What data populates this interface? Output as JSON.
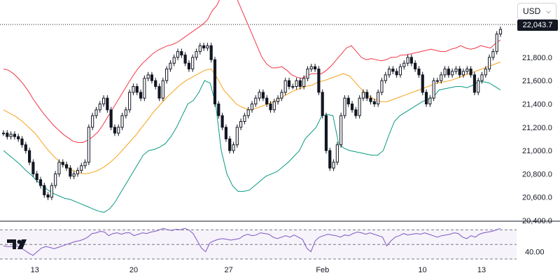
{
  "currency": {
    "label": "USD",
    "chevron_icon": "chevron-down-icon"
  },
  "last_price_label": "22,043.7",
  "price_axis": {
    "labels": [
      "21,800.0",
      "21,600.0",
      "21,400.0",
      "21,200.0",
      "21,000.0",
      "20,800.0",
      "20,600.0",
      "20,400.0"
    ]
  },
  "rsi_axis": {
    "labels": [
      "40.00"
    ]
  },
  "date_axis": {
    "labels": [
      "13",
      "20",
      "27",
      "Feb",
      "10",
      "13"
    ]
  },
  "brand": {
    "logo_icon": "tradingview-logo-icon"
  },
  "colors": {
    "upper_band": "#f23645",
    "middle_band": "#f7a21b",
    "lower_band": "#089981",
    "candles": "#131722",
    "rsi_line": "#7e57c2",
    "rsi_band_fill": "#ede7f6"
  },
  "chart_data": [
    {
      "type": "candlestick",
      "title": "",
      "ylim": [
        20400,
        22100
      ],
      "y_ticks": [
        20400,
        20600,
        20800,
        21000,
        21200,
        21400,
        21600,
        21800,
        22000
      ],
      "x_labels": [
        "13",
        "20",
        "27",
        "Feb",
        "10",
        "13"
      ],
      "close": [
        21150,
        21120,
        21140,
        21120,
        21100,
        21050,
        21000,
        20900,
        20800,
        20750,
        20700,
        20620,
        20600,
        20700,
        20800,
        20900,
        20880,
        20850,
        20780,
        20800,
        20830,
        20870,
        20900,
        21200,
        21300,
        21350,
        21400,
        21450,
        21350,
        21200,
        21150,
        21200,
        21300,
        21350,
        21500,
        21550,
        21500,
        21450,
        21620,
        21650,
        21600,
        21550,
        21450,
        21600,
        21700,
        21750,
        21800,
        21850,
        21820,
        21750,
        21700,
        21800,
        21850,
        21900,
        21880,
        21900,
        21780,
        21400,
        21300,
        21200,
        21100,
        21000,
        21050,
        21200,
        21250,
        21300,
        21350,
        21400,
        21450,
        21500,
        21450,
        21400,
        21350,
        21420,
        21450,
        21500,
        21600,
        21550,
        21550,
        21600,
        21550,
        21620,
        21700,
        21720,
        21700,
        21500,
        21300,
        21000,
        20850,
        20900,
        21050,
        21300,
        21450,
        21400,
        21350,
        21300,
        21450,
        21500,
        21450,
        21420,
        21400,
        21500,
        21600,
        21650,
        21700,
        21680,
        21650,
        21720,
        21750,
        21800,
        21750,
        21700,
        21650,
        21500,
        21400,
        21450,
        21600,
        21600,
        21650,
        21700,
        21650,
        21680,
        21700,
        21650,
        21680,
        21700,
        21650,
        21500,
        21600,
        21650,
        21700,
        21800,
        21850,
        22000,
        22040
      ]
    },
    {
      "type": "line",
      "title": "",
      "series": [
        {
          "values": [
            21700,
            21690,
            21660,
            21620,
            21570,
            21510,
            21440,
            21380,
            21320,
            21270,
            21220,
            21180,
            21140,
            21110,
            21080,
            21070,
            21070,
            21090,
            21120,
            21160,
            21220,
            21290,
            21360,
            21430,
            21500,
            21570,
            21640,
            21700,
            21750,
            21790,
            21830,
            21860,
            21880,
            21900,
            21910,
            21930,
            21960,
            21990,
            22020,
            22050,
            22080,
            22120,
            22200,
            22250,
            22350,
            22400,
            22380,
            22300,
            22200,
            22100,
            22000,
            21900,
            21800,
            21740,
            21710,
            21710,
            21720,
            21690,
            21650,
            21630,
            21620,
            21640,
            21660,
            21660,
            21660,
            21690,
            21730,
            21780,
            21830,
            21880,
            21900,
            21850,
            21800,
            21780,
            21790,
            21780,
            21770,
            21780,
            21800,
            21800,
            21820,
            21820,
            21830,
            21840,
            21850,
            21860,
            21870,
            21860,
            21850,
            21850,
            21870,
            21880,
            21900,
            21880,
            21870,
            21880,
            21900,
            21890,
            21880,
            21920,
            21950
          ]
        },
        {
          "values": [
            21350,
            21320,
            21290,
            21250,
            21200,
            21150,
            21080,
            21010,
            20950,
            20900,
            20860,
            20830,
            20810,
            20800,
            20810,
            20830,
            20860,
            20900,
            20950,
            21010,
            21070,
            21130,
            21200,
            21270,
            21340,
            21400,
            21460,
            21510,
            21560,
            21600,
            21630,
            21660,
            21690,
            21700,
            21620,
            21520,
            21460,
            21400,
            21370,
            21350,
            21360,
            21380,
            21400,
            21420,
            21450,
            21480,
            21510,
            21530,
            21550,
            21560,
            21590,
            21600,
            21620,
            21640,
            21660,
            21640,
            21580,
            21520,
            21470,
            21440,
            21420,
            21420,
            21440,
            21460,
            21480,
            21500,
            21520,
            21540,
            21560,
            21580,
            21590,
            21600,
            21620,
            21640,
            21660,
            21680,
            21700,
            21720,
            21740,
            21760
          ]
        },
        {
          "values": [
            21000,
            20960,
            20920,
            20880,
            20830,
            20790,
            20740,
            20700,
            20660,
            20630,
            20610,
            20590,
            20580,
            20560,
            20540,
            20520,
            20500,
            20480,
            20470,
            20500,
            20560,
            20640,
            20720,
            20800,
            20880,
            20960,
            21000,
            21010,
            21030,
            21060,
            21120,
            21200,
            21300,
            21400,
            21430,
            21500,
            21600,
            21580,
            21400,
            21000,
            20800,
            20700,
            20650,
            20650,
            20660,
            20700,
            20740,
            20780,
            20800,
            20820,
            20860,
            20900,
            20950,
            21000,
            21100,
            21150,
            21200,
            21300,
            21310,
            21300,
            21060,
            21020,
            21000,
            20990,
            20980,
            20970,
            20960,
            20960,
            21000,
            21130,
            21250,
            21300,
            21330,
            21360,
            21390,
            21420,
            21440,
            21460,
            21520,
            21530,
            21540,
            21550,
            21550,
            21540,
            21560,
            21590,
            21590,
            21580,
            21550,
            21520
          ]
        }
      ]
    },
    {
      "type": "line",
      "title": "",
      "ylim": [
        30,
        80
      ],
      "guide_levels": [
        70,
        50,
        30
      ],
      "y_ticks": [
        40
      ],
      "values": [
        48,
        47,
        47,
        48,
        46,
        42,
        38,
        35,
        40,
        45,
        47,
        46,
        44,
        46,
        48,
        50,
        52,
        54,
        55,
        57,
        60,
        65,
        66,
        68,
        67,
        62,
        65,
        66,
        64,
        66,
        66,
        62,
        64,
        66,
        65,
        67,
        68,
        70,
        72,
        70,
        69,
        71,
        70,
        72,
        70,
        65,
        55,
        45,
        40,
        52,
        55,
        57,
        58,
        57,
        56,
        57,
        58,
        62,
        64,
        62,
        63,
        66,
        65,
        64,
        60,
        58,
        60,
        62,
        60,
        63,
        60,
        57,
        45,
        40,
        55,
        60,
        62,
        64,
        63,
        62,
        60,
        63,
        62,
        65,
        67,
        66,
        64,
        66,
        64,
        62,
        60,
        48,
        55,
        60,
        62,
        65,
        63,
        64,
        65,
        64,
        66,
        64,
        62,
        60,
        62,
        63,
        64,
        66,
        65,
        60,
        58,
        62,
        60,
        64,
        66,
        67,
        68,
        70,
        72
      ]
    }
  ]
}
